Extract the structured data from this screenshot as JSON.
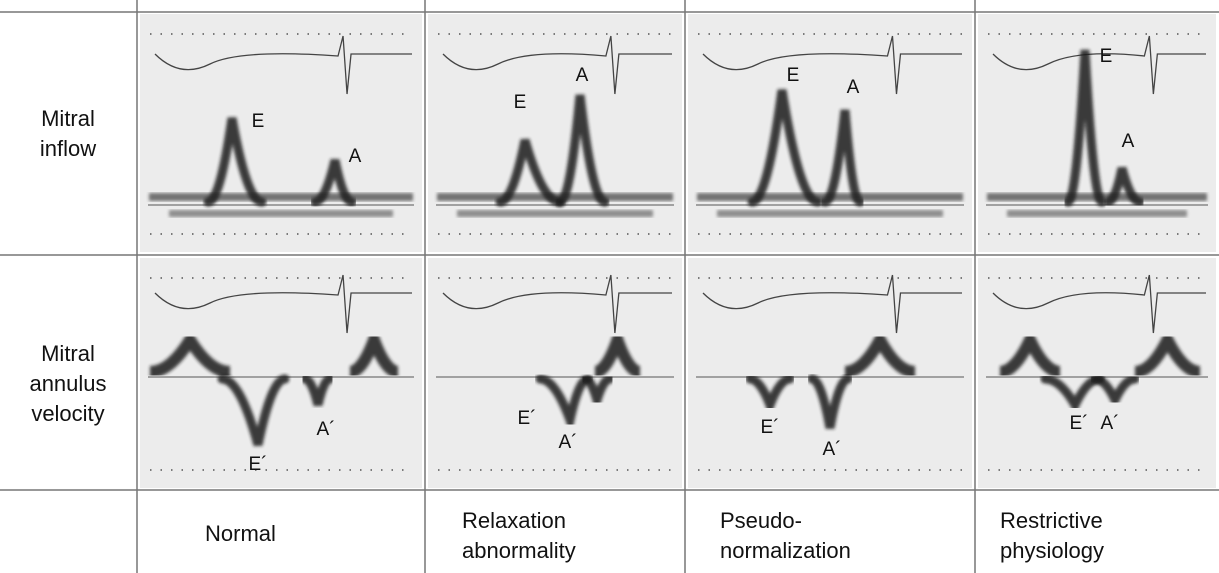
{
  "row_labels": [
    [
      "Mitral",
      "inflow"
    ],
    [
      "Mitral",
      "annulus",
      "velocity"
    ]
  ],
  "column_labels": [
    [
      "Normal"
    ],
    [
      "Relaxation",
      "abnormality"
    ],
    [
      "Pseudo-",
      "normalization"
    ],
    [
      "Restrictive",
      "physiology"
    ]
  ],
  "panel_labels": [
    [
      [
        "E",
        "A"
      ],
      [
        "E",
        "A"
      ],
      [
        "E",
        "A"
      ],
      [
        "E",
        "A"
      ]
    ],
    [
      [
        "E´",
        "A´"
      ],
      [
        "E´",
        "A´"
      ],
      [
        "E´",
        "A´"
      ],
      [
        "E´",
        "A´"
      ]
    ]
  ]
}
